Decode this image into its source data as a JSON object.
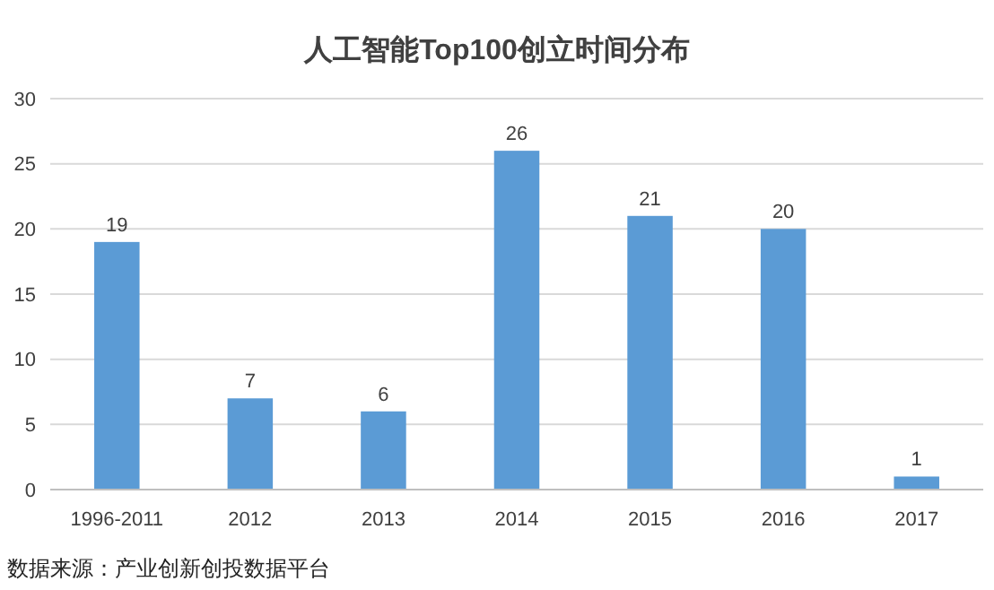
{
  "chart_data": {
    "type": "bar",
    "title": "人工智能Top100创立时间分布",
    "categories": [
      "1996-2011",
      "2012",
      "2013",
      "2014",
      "2015",
      "2016",
      "2017"
    ],
    "values": [
      19,
      7,
      6,
      26,
      21,
      20,
      1
    ],
    "color": "#5b9bd5",
    "ylim": [
      0,
      30
    ],
    "yticks": [
      0,
      5,
      10,
      15,
      20,
      25,
      30
    ],
    "grid": "y",
    "data_labels": true,
    "annotations": [
      "数据来源：产业创新创投数据平台"
    ]
  }
}
